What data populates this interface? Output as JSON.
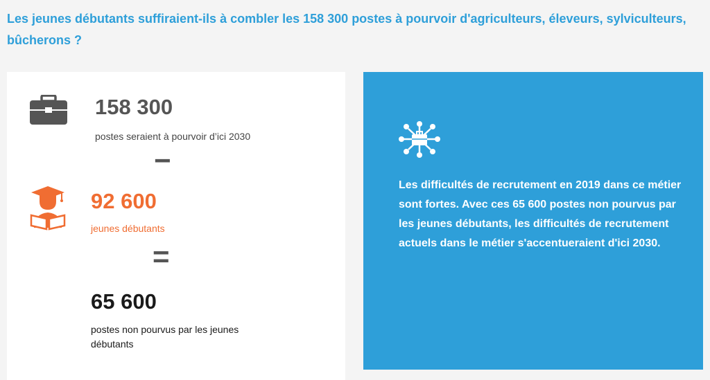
{
  "question": "Les jeunes débutants suffiraient-ils à combler les 158 300 postes à pourvoir d'agriculteurs, éleveurs, sylviculteurs, bûcherons ?",
  "colors": {
    "accent_blue": "#2e9fd9",
    "orange": "#f06d32",
    "gray": "#555555",
    "dark": "#1a1a1a"
  },
  "stats": {
    "openings": {
      "value": "158 300",
      "label": "postes seraient à pourvoir d’ici 2030",
      "icon": "briefcase-icon"
    },
    "minus": "−",
    "beginners": {
      "value": "92 600",
      "label": "jeunes débutants",
      "icon": "graduate-reading-icon"
    },
    "equals": "=",
    "unfilled": {
      "value": "65 600",
      "label": "postes non pourvus par les jeunes débutants"
    }
  },
  "info": {
    "icon": "network-briefcase-icon",
    "text": "Les difficultés de recrutement en 2019 dans ce métier sont fortes. Avec ces 65 600 postes non pourvus par les jeunes débutants, les difficultés de recrutement actuels dans le métier s'accentueraient d'ici 2030."
  }
}
